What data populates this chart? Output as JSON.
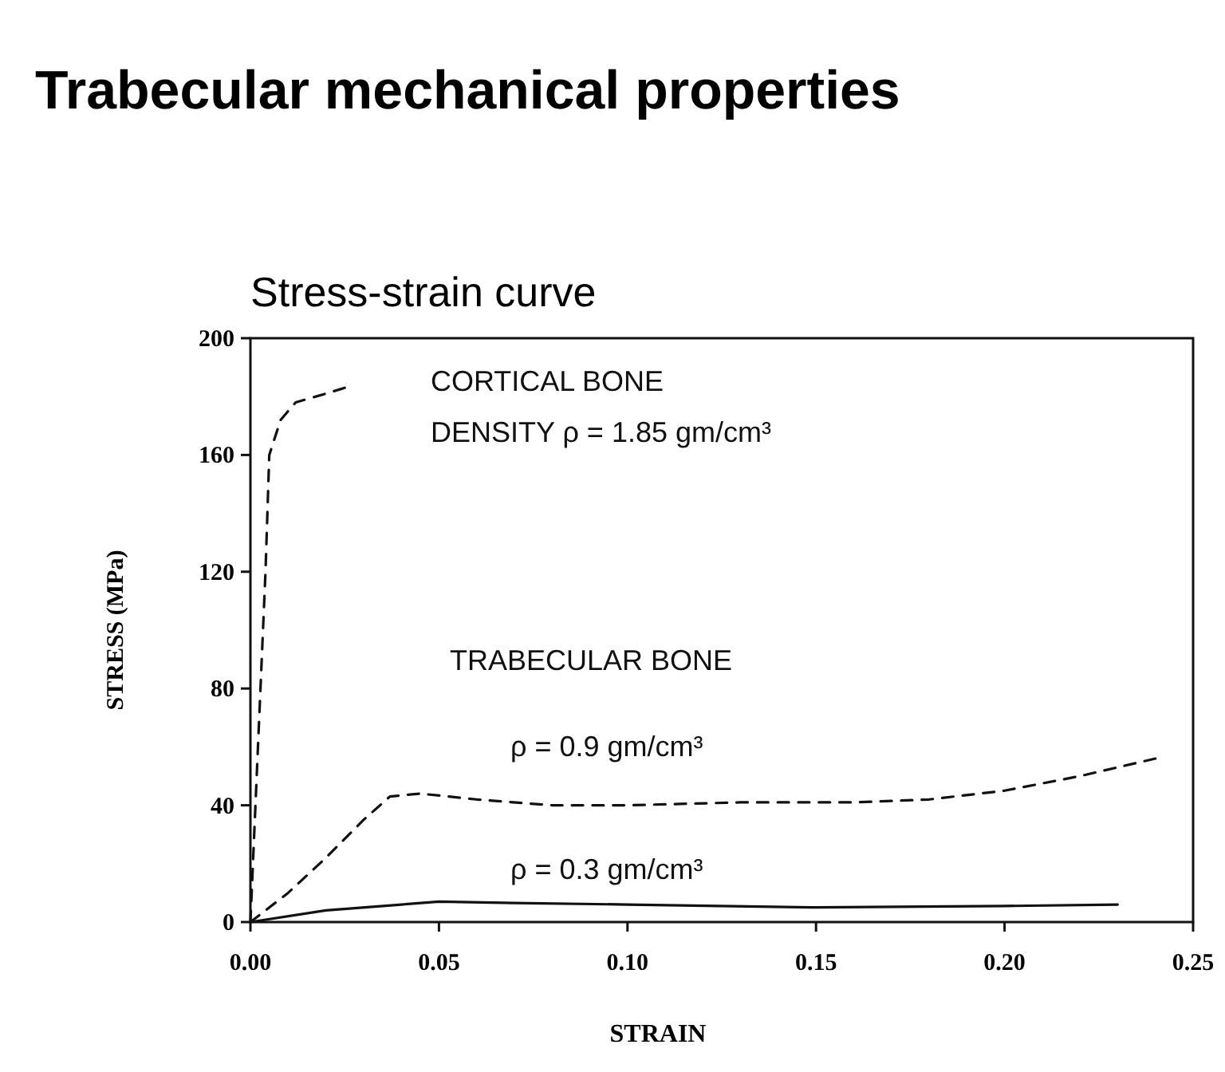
{
  "chart_data": {
    "type": "line",
    "title": "Trabecular mechanical properties",
    "subtitle": "Stress-strain curve",
    "xlabel": "STRAIN",
    "ylabel": "STRESS (MPa)",
    "xlim": [
      0,
      0.25
    ],
    "ylim": [
      0,
      200
    ],
    "xticks": [
      {
        "value": 0,
        "label": "0.00"
      },
      {
        "value": 0.05,
        "label": "0.05"
      },
      {
        "value": 0.1,
        "label": "0.10"
      },
      {
        "value": 0.15,
        "label": "0.15"
      },
      {
        "value": 0.2,
        "label": "0.20"
      },
      {
        "value": 0.25,
        "label": "0.25"
      }
    ],
    "yticks": [
      0,
      40,
      80,
      120,
      160,
      200
    ],
    "grid": false,
    "series": [
      {
        "color": "#111111",
        "line_style": "dashed",
        "x": [
          0,
          0.002,
          0.004,
          0.005,
          0.008,
          0.012,
          0.02,
          0.025
        ],
        "values": [
          0,
          60,
          120,
          160,
          172,
          178,
          181,
          183
        ]
      },
      {
        "color": "#111111",
        "line_style": "dashed",
        "x": [
          0,
          0.01,
          0.02,
          0.03,
          0.037,
          0.045,
          0.06,
          0.08,
          0.1,
          0.13,
          0.16,
          0.18,
          0.2,
          0.22,
          0.24
        ],
        "values": [
          0,
          10,
          22,
          35,
          43,
          44,
          42,
          40,
          40,
          41,
          41,
          42,
          45,
          50,
          56
        ]
      },
      {
        "color": "#111111",
        "line_style": "solid",
        "x": [
          0,
          0.02,
          0.04,
          0.05,
          0.07,
          0.1,
          0.15,
          0.2,
          0.23
        ],
        "values": [
          0,
          4,
          6,
          7,
          6.5,
          6,
          5,
          5.5,
          6
        ]
      }
    ],
    "annotations": [
      "CORTICAL BONE",
      "DENSITY ρ = 1.85 gm/cm³",
      "TRABECULAR BONE",
      "ρ = 0.9 gm/cm³",
      "ρ = 0.3 gm/cm³"
    ]
  }
}
